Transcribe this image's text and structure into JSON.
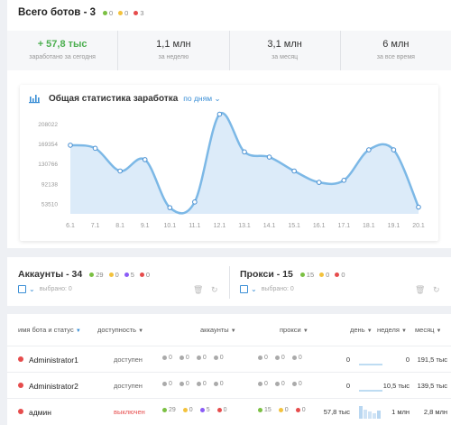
{
  "header": {
    "title": "Всего ботов - 3",
    "counts": [
      {
        "color": "green",
        "value": "0"
      },
      {
        "color": "yellow",
        "value": "0"
      },
      {
        "color": "red",
        "value": "3"
      }
    ]
  },
  "stats": [
    {
      "value": "+ 57,8 тыс",
      "label": "заработано за сегодня"
    },
    {
      "value": "1,1 млн",
      "label": "за неделю"
    },
    {
      "value": "3,1 млн",
      "label": "за месяц"
    },
    {
      "value": "6 млн",
      "label": "за все время"
    }
  ],
  "chart_header": {
    "title": "Общая статистика заработка",
    "period": "по дням"
  },
  "chart_data": {
    "type": "area",
    "x": [
      "6.1",
      "7.1",
      "8.1",
      "9.1",
      "10.1",
      "11.1",
      "12.1",
      "13.1",
      "14.1",
      "15.1",
      "16.1",
      "17.1",
      "18.1",
      "19.1",
      "20.1"
    ],
    "values": [
      168000,
      162000,
      118000,
      140000,
      47000,
      58000,
      228000,
      155000,
      145000,
      118000,
      96000,
      100000,
      159000,
      159000,
      48000
    ],
    "yticks": [
      "208022",
      "169354",
      "130766",
      "92138",
      "53510"
    ],
    "ytick_values": [
      208022,
      169354,
      130766,
      92138,
      53510
    ],
    "ylim": [
      35000,
      215000
    ],
    "color": "#7cb8e6",
    "fill": "#dcebf9",
    "grid": false
  },
  "accounts": {
    "title": "Аккаунты - 34",
    "counts": [
      {
        "color": "green",
        "value": "29"
      },
      {
        "color": "yellow",
        "value": "0"
      },
      {
        "color": "purple",
        "value": "5"
      },
      {
        "color": "red",
        "value": "0"
      }
    ],
    "selected": "выбрано: 0"
  },
  "proxies": {
    "title": "Прокси - 15",
    "counts": [
      {
        "color": "green",
        "value": "15"
      },
      {
        "color": "yellow",
        "value": "0"
      },
      {
        "color": "red",
        "value": "0"
      }
    ],
    "selected": "выбрано: 0"
  },
  "table": {
    "columns": [
      "имя бота и статус",
      "доступность",
      "аккаунты",
      "прокси",
      "день",
      "неделя",
      "месяц"
    ],
    "rows": [
      {
        "name": "Administrator1",
        "status": "доступен",
        "acc": [
          "0",
          "0",
          "0",
          "0"
        ],
        "proxy": [
          "0",
          "0",
          "0"
        ],
        "day": "0",
        "week": "0",
        "month": "191,5 тыс"
      },
      {
        "name": "Administrator2",
        "status": "доступен",
        "acc": [
          "0",
          "0",
          "0",
          "0"
        ],
        "proxy": [
          "0",
          "0",
          "0"
        ],
        "day": "0",
        "week": "10,5 тыс",
        "month": "139,5 тыс"
      },
      {
        "name": "админ",
        "status": "выключен",
        "acc": [
          "29",
          "0",
          "5",
          "0"
        ],
        "proxy": [
          "15",
          "0",
          "0"
        ],
        "day": "57,8 тыс",
        "week": "1 млн",
        "month": "2,8 млн"
      }
    ]
  }
}
